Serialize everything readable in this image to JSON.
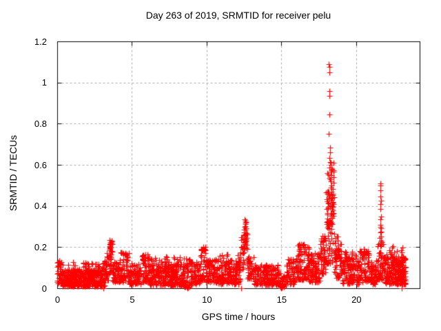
{
  "chart_data": {
    "type": "scatter",
    "title": "Day 263 of 2019, SRMTID for receiver pelu",
    "xlabel": "GPS time / hours",
    "ylabel": "SRMTID / TECUs",
    "xlim": [
      0,
      24.25
    ],
    "ylim": [
      0,
      1.2
    ],
    "xtick_labels": [
      "0",
      "5",
      "10",
      "15",
      "20"
    ],
    "ytick_labels": [
      "0",
      "0.2",
      "0.4",
      "0.6",
      "0.8",
      "1",
      "1.2"
    ],
    "grid": true,
    "grid_style": "dashed",
    "grid_color": "#ababab",
    "border_color": "#000000",
    "legend": "none",
    "marker": {
      "shape": "plus",
      "color": "#ff0000",
      "size": 9
    },
    "x_units": "hours",
    "y_units": "TECUs",
    "data_end_hour": 23.35,
    "notable_peaks": [
      {
        "x": 3.5,
        "y": 0.235
      },
      {
        "x": 9.8,
        "y": 0.2
      },
      {
        "x": 12.55,
        "y": 0.335
      },
      {
        "x": 18.2,
        "y": 1.09
      },
      {
        "x": 21.62,
        "y": 0.51
      }
    ],
    "seed": 20190263,
    "band_segments": [
      [
        0.0,
        0.35,
        0.02,
        0.13,
        45,
        1.3
      ],
      [
        0.35,
        3.2,
        0.01,
        0.09,
        380,
        1.5
      ],
      [
        0.35,
        3.2,
        0.06,
        0.13,
        60,
        1.0
      ],
      [
        3.2,
        3.45,
        0.04,
        0.18,
        30,
        1.2
      ],
      [
        3.45,
        3.7,
        0.07,
        0.235,
        35,
        1.1
      ],
      [
        3.7,
        4.15,
        0.03,
        0.13,
        50,
        1.4
      ],
      [
        4.15,
        4.85,
        0.03,
        0.175,
        75,
        1.4
      ],
      [
        4.85,
        5.6,
        0.02,
        0.12,
        80,
        1.5
      ],
      [
        5.6,
        6.15,
        0.03,
        0.165,
        55,
        1.4
      ],
      [
        6.15,
        8.45,
        0.015,
        0.12,
        240,
        1.5
      ],
      [
        6.15,
        8.45,
        0.08,
        0.155,
        40,
        1.0
      ],
      [
        8.45,
        8.95,
        0.005,
        0.145,
        55,
        1.4
      ],
      [
        8.95,
        9.6,
        0.02,
        0.13,
        65,
        1.5
      ],
      [
        9.6,
        9.95,
        0.04,
        0.205,
        35,
        1.2
      ],
      [
        9.95,
        10.65,
        0.03,
        0.145,
        70,
        1.4
      ],
      [
        10.65,
        12.25,
        0.02,
        0.135,
        160,
        1.5
      ],
      [
        10.65,
        12.25,
        0.09,
        0.165,
        25,
        1.0
      ],
      [
        12.25,
        12.5,
        0.08,
        0.25,
        22,
        1.1
      ],
      [
        12.5,
        12.72,
        0.17,
        0.335,
        26,
        1.0
      ],
      [
        12.72,
        13.15,
        0.04,
        0.16,
        40,
        1.3
      ],
      [
        13.15,
        14.9,
        0.015,
        0.115,
        170,
        1.5
      ],
      [
        14.9,
        15.35,
        0.005,
        0.07,
        35,
        1.3
      ],
      [
        15.35,
        16.05,
        0.02,
        0.145,
        65,
        1.3
      ],
      [
        16.05,
        16.85,
        0.04,
        0.215,
        90,
        1.3
      ],
      [
        16.85,
        17.6,
        0.03,
        0.175,
        85,
        1.4
      ],
      [
        17.6,
        18.0,
        0.07,
        0.26,
        50,
        1.2
      ],
      [
        18.0,
        18.55,
        0.12,
        0.48,
        70,
        1.3
      ],
      [
        18.05,
        18.5,
        0.3,
        0.62,
        30,
        1.0
      ],
      [
        18.55,
        19.05,
        0.05,
        0.26,
        65,
        1.3
      ],
      [
        19.05,
        20.25,
        0.02,
        0.15,
        120,
        1.4
      ],
      [
        19.2,
        20.2,
        0.1,
        0.185,
        20,
        1.0
      ],
      [
        20.25,
        20.85,
        0.03,
        0.185,
        65,
        1.3
      ],
      [
        20.85,
        21.4,
        0.02,
        0.135,
        55,
        1.4
      ],
      [
        21.4,
        21.85,
        0.04,
        0.24,
        55,
        1.3
      ],
      [
        21.85,
        23.3,
        0.02,
        0.155,
        180,
        1.4
      ],
      [
        21.85,
        23.3,
        0.1,
        0.2,
        35,
        1.0
      ],
      [
        22.9,
        23.35,
        0.02,
        0.16,
        40,
        1.3
      ]
    ],
    "points": [
      [
        0.08,
        0.125
      ],
      [
        0.12,
        0.135
      ],
      [
        0.2,
        0.115
      ],
      [
        3.1,
        0.0
      ],
      [
        3.49,
        0.19
      ],
      [
        3.5,
        0.215
      ],
      [
        3.52,
        0.235
      ],
      [
        3.53,
        0.2
      ],
      [
        3.55,
        0.225
      ],
      [
        3.56,
        0.21
      ],
      [
        3.57,
        0.195
      ],
      [
        4.3,
        0.175
      ],
      [
        4.55,
        0.17
      ],
      [
        5.9,
        0.165
      ],
      [
        7.3,
        0.155
      ],
      [
        8.7,
        0.0
      ],
      [
        8.75,
        0.005
      ],
      [
        9.72,
        0.185
      ],
      [
        9.78,
        0.2
      ],
      [
        9.85,
        0.19
      ],
      [
        11.4,
        0.165
      ],
      [
        12.3,
        0.0
      ],
      [
        12.52,
        0.255
      ],
      [
        12.53,
        0.3
      ],
      [
        12.54,
        0.225
      ],
      [
        12.55,
        0.335
      ],
      [
        12.56,
        0.24
      ],
      [
        12.57,
        0.32
      ],
      [
        12.58,
        0.265
      ],
      [
        12.6,
        0.29
      ],
      [
        12.62,
        0.23
      ],
      [
        15.0,
        0.0
      ],
      [
        15.05,
        0.005
      ],
      [
        16.3,
        0.215
      ],
      [
        16.45,
        0.21
      ],
      [
        16.6,
        0.2
      ],
      [
        17.85,
        0.24
      ],
      [
        17.9,
        0.255
      ],
      [
        18.18,
        1.09
      ],
      [
        18.21,
        1.075
      ],
      [
        18.19,
        1.05
      ],
      [
        18.2,
        0.96
      ],
      [
        18.22,
        0.935
      ],
      [
        18.2,
        0.845
      ],
      [
        18.18,
        0.75
      ],
      [
        18.24,
        0.685
      ],
      [
        18.27,
        0.66
      ],
      [
        18.2,
        0.635
      ],
      [
        18.24,
        0.615
      ],
      [
        18.3,
        0.6
      ],
      [
        18.22,
        0.585
      ],
      [
        18.28,
        0.565
      ],
      [
        18.33,
        0.55
      ],
      [
        18.26,
        0.53
      ],
      [
        18.31,
        0.52
      ],
      [
        18.35,
        0.5
      ],
      [
        18.3,
        0.49
      ],
      [
        18.37,
        0.47
      ],
      [
        18.32,
        0.455
      ],
      [
        18.4,
        0.44
      ],
      [
        18.36,
        0.43
      ],
      [
        18.42,
        0.42
      ],
      [
        18.38,
        0.4
      ],
      [
        20.5,
        0.19
      ],
      [
        20.55,
        0.18
      ],
      [
        21.58,
        0.245
      ],
      [
        21.6,
        0.475
      ],
      [
        21.6,
        0.385
      ],
      [
        21.6,
        0.31
      ],
      [
        21.61,
        0.41
      ],
      [
        21.62,
        0.51
      ],
      [
        21.62,
        0.27
      ],
      [
        21.63,
        0.445
      ],
      [
        21.63,
        0.335
      ],
      [
        21.64,
        0.5
      ],
      [
        21.64,
        0.3
      ],
      [
        21.65,
        0.425
      ],
      [
        21.65,
        0.275
      ],
      [
        21.66,
        0.35
      ],
      [
        21.67,
        0.29
      ],
      [
        21.68,
        0.25
      ],
      [
        21.72,
        0.225
      ],
      [
        22.45,
        0.205
      ],
      [
        23.05,
        0.0
      ]
    ]
  }
}
